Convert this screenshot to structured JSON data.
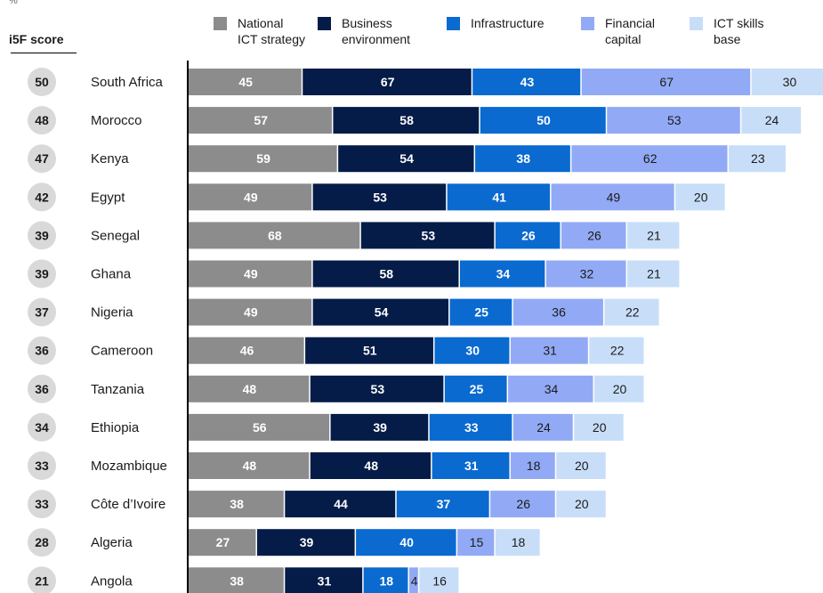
{
  "unit_label": "%",
  "score_header": "i5F score",
  "colors": {
    "score_circle": "#d9d9d9",
    "axis_line": "#000000",
    "series": [
      "#8c8c8c",
      "#051c48",
      "#0a6ad0",
      "#92aaf5",
      "#c8def8"
    ],
    "label_light": "#ffffff",
    "label_dark": "#1a1a1a"
  },
  "chart_data": {
    "type": "bar",
    "orientation": "horizontal",
    "stacked": true,
    "title": "",
    "xlabel": "",
    "ylabel": "",
    "unit": "%",
    "grid": false,
    "legend_position": "top",
    "categories": [
      "South Africa",
      "Morocco",
      "Kenya",
      "Egypt",
      "Senegal",
      "Ghana",
      "Nigeria",
      "Cameroon",
      "Tanzania",
      "Ethiopia",
      "Mozambique",
      "Côte d’Ivoire",
      "Algeria",
      "Angola"
    ],
    "scores": [
      50,
      48,
      47,
      42,
      39,
      39,
      37,
      36,
      36,
      34,
      33,
      33,
      28,
      21
    ],
    "series": [
      {
        "name": "National\nICT strategy",
        "values": [
          45,
          57,
          59,
          49,
          68,
          49,
          49,
          46,
          48,
          56,
          48,
          38,
          27,
          38
        ]
      },
      {
        "name": "Business\nenvironment",
        "values": [
          67,
          58,
          54,
          53,
          53,
          58,
          54,
          51,
          53,
          39,
          48,
          44,
          39,
          31
        ]
      },
      {
        "name": "Infrastructure",
        "values": [
          43,
          50,
          38,
          41,
          26,
          34,
          25,
          30,
          25,
          33,
          31,
          37,
          40,
          18
        ]
      },
      {
        "name": "Financial\ncapital",
        "values": [
          67,
          53,
          62,
          49,
          26,
          32,
          36,
          31,
          34,
          24,
          18,
          26,
          15,
          4
        ]
      },
      {
        "name": "ICT skills\nbase",
        "values": [
          30,
          24,
          23,
          20,
          21,
          21,
          22,
          22,
          20,
          20,
          20,
          20,
          18,
          16
        ]
      }
    ]
  }
}
